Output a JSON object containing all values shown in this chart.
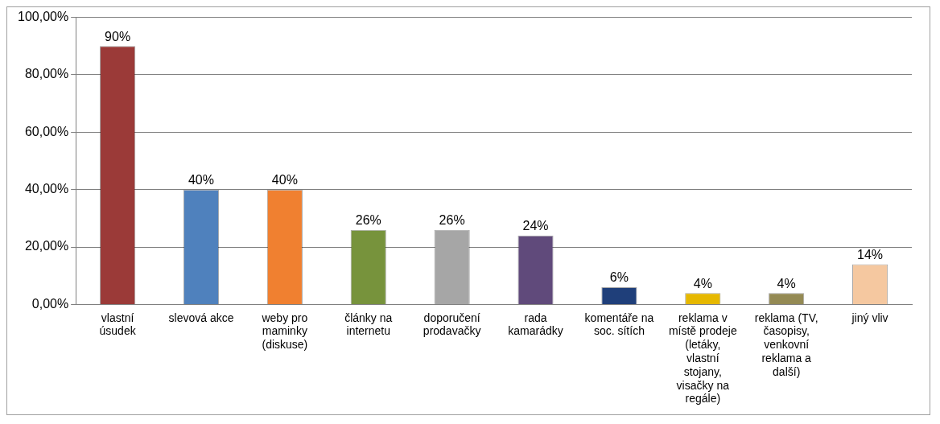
{
  "chart_data": {
    "type": "bar",
    "categories": [
      "vlastní úsudek",
      "slevová akce",
      "weby pro maminky (diskuse)",
      "články na internetu",
      "doporučení prodavačky",
      "rada kamarádky",
      "komentáře na soc. sítích",
      "reklama v místě prodeje (letáky, vlastní stojany, visačky na regále)",
      "reklama (TV, časopisy, venkovní reklama a další)",
      "jiný vliv"
    ],
    "values": [
      90,
      40,
      40,
      26,
      26,
      24,
      6,
      4,
      4,
      14
    ],
    "value_labels": [
      "90%",
      "40%",
      "40%",
      "26%",
      "26%",
      "24%",
      "6%",
      "4%",
      "4%",
      "14%"
    ],
    "colors": [
      "#9b3a38",
      "#4f81bd",
      "#f08030",
      "#77933c",
      "#a6a6a6",
      "#604a7b",
      "#1f3f7a",
      "#e6b800",
      "#948a54",
      "#f5c8a0"
    ],
    "ylim": [
      0,
      100
    ],
    "yticks": [
      {
        "value": 0,
        "label": "0,00%"
      },
      {
        "value": 20,
        "label": "20,00%"
      },
      {
        "value": 40,
        "label": "40,00%"
      },
      {
        "value": 60,
        "label": "60,00%"
      },
      {
        "value": 80,
        "label": "80,00%"
      },
      {
        "value": 100,
        "label": "100,00%"
      }
    ],
    "grid": "y",
    "legend": false
  }
}
